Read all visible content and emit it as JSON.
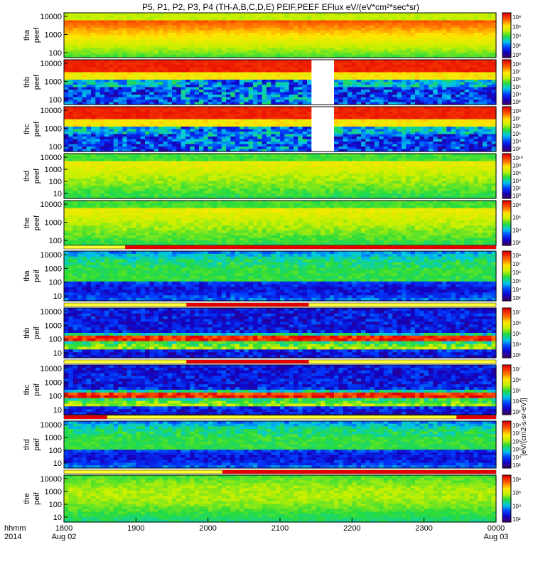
{
  "chart_data": {
    "type": "heatmap",
    "title": "P5, P1, P2, P3, P4 (TH-A,B,C,D,E) PEIF,PEEF EFlux eV/(eV*cm²*sec*sr)",
    "x_axis": {
      "corner_labels": [
        "hhmm",
        "2014"
      ],
      "ticks": [
        "1800",
        "1900",
        "2000",
        "2100",
        "2200",
        "2300",
        "0000"
      ],
      "tick_dates": [
        "Aug 02",
        "Aug 03"
      ],
      "range_hours": [
        18,
        24
      ]
    },
    "colorbar_label": "[eV/(cm2-s-sr-eV)]",
    "panels": [
      {
        "ylabel": [
          "tha",
          "peef"
        ],
        "yticks": [
          "10000",
          "1000",
          "100"
        ],
        "cb_ticks": [
          "10⁸",
          "10⁶",
          "10⁴",
          "10²",
          "10⁰"
        ],
        "profile": "electron_hot"
      },
      {
        "ylabel": [
          "thb",
          "peef"
        ],
        "yticks": [
          "10000",
          "1000",
          "100"
        ],
        "cb_ticks": [
          "10⁸",
          "10⁷",
          "10⁶",
          "10⁵",
          "10⁴",
          "10³"
        ],
        "profile": "electron_lowE",
        "gap": [
          21.4,
          21.7
        ],
        "noisy": [
          19.6,
          21.4
        ]
      },
      {
        "ylabel": [
          "thc",
          "peef"
        ],
        "yticks": [
          "10000",
          "1000",
          "100"
        ],
        "cb_ticks": [
          "10⁸",
          "10⁷",
          "10⁶",
          "10⁵",
          "10⁴",
          "10³"
        ],
        "profile": "electron_lowE",
        "gap": [
          21.4,
          21.7
        ],
        "noisy": [
          19.6,
          21.4
        ]
      },
      {
        "ylabel": [
          "thd",
          "peef"
        ],
        "yticks": [
          "10000",
          "1000",
          "100",
          "10"
        ],
        "cb_ticks": [
          "10¹⁰",
          "10⁸",
          "10⁶",
          "10⁴",
          "10²",
          "10⁰"
        ],
        "profile": "electron_mid"
      },
      {
        "ylabel": [
          "the",
          "peef"
        ],
        "yticks": [
          "10000",
          "1000",
          "100"
        ],
        "cb_ticks": [
          "10⁸",
          "10⁶",
          "10⁴",
          "10²"
        ],
        "profile": "electron_mid"
      },
      {
        "ylabel": [
          "tha",
          "peif"
        ],
        "yticks": [
          "10000",
          "1000",
          "100",
          "10"
        ],
        "cb_ticks": [
          "10⁸",
          "10⁷",
          "10⁶",
          "10⁵",
          "10⁴",
          "10³"
        ],
        "profile": "ion_cool",
        "bar": [
          18.85,
          24
        ]
      },
      {
        "ylabel": [
          "thb",
          "peif"
        ],
        "yticks": [
          "10000",
          "1000",
          "100",
          "10"
        ],
        "cb_ticks": [
          "10⁷",
          "10⁶",
          "10⁵",
          "10⁴",
          "10³"
        ],
        "profile": "ion_band",
        "bar": [
          19.7,
          21.4
        ]
      },
      {
        "ylabel": [
          "thc",
          "peif"
        ],
        "yticks": [
          "10000",
          "1000",
          "100",
          "10"
        ],
        "cb_ticks": [
          "10⁷",
          "10⁶",
          "10⁵",
          "10⁴",
          "10³"
        ],
        "profile": "ion_band",
        "bar": [
          19.7,
          21.4
        ]
      },
      {
        "ylabel": [
          "thd",
          "peif"
        ],
        "yticks": [
          "10000",
          "1000",
          "100",
          "10"
        ],
        "cb_ticks": [
          "10⁸",
          "10⁷",
          "10⁶",
          "10⁵",
          "10⁴",
          "10³"
        ],
        "profile": "ion_cool",
        "bar": [
          18.0,
          18.6
        ],
        "bar2": [
          23.45,
          24
        ]
      },
      {
        "ylabel": [
          "the",
          "peif"
        ],
        "yticks": [
          "10000",
          "1000",
          "100",
          "10"
        ],
        "cb_ticks": [
          "10⁸",
          "10⁶",
          "10⁴",
          "10²"
        ],
        "profile": "ion_warm",
        "bar": [
          20.2,
          24
        ]
      }
    ]
  }
}
